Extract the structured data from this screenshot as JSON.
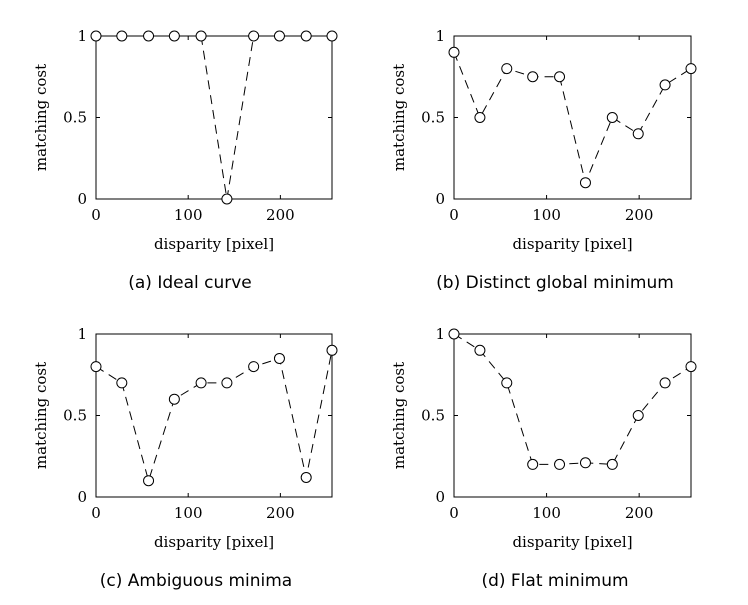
{
  "chart_data": [
    {
      "type": "line",
      "caption": "(a) Ideal curve",
      "xlabel": "disparity [pixel]",
      "ylabel": "matching cost",
      "xlim": [
        0,
        256
      ],
      "ylim": [
        0,
        1
      ],
      "xticks": [
        0,
        100,
        200
      ],
      "yticks": [
        0,
        0.5,
        1
      ],
      "grid": false,
      "line_style": "dashed",
      "marker": "open-circle",
      "x": [
        0,
        28,
        57,
        85,
        114,
        142,
        171,
        199,
        228,
        256
      ],
      "y": [
        1,
        1,
        1,
        1,
        1,
        0,
        1,
        1,
        1,
        1
      ]
    },
    {
      "type": "line",
      "caption": "(b) Distinct global minimum",
      "xlabel": "disparity [pixel]",
      "ylabel": "matching cost",
      "xlim": [
        0,
        256
      ],
      "ylim": [
        0,
        1
      ],
      "xticks": [
        0,
        100,
        200
      ],
      "yticks": [
        0,
        0.5,
        1
      ],
      "grid": false,
      "line_style": "dashed",
      "marker": "open-circle",
      "x": [
        0,
        28,
        57,
        85,
        114,
        142,
        171,
        199,
        228,
        256
      ],
      "y": [
        0.9,
        0.5,
        0.8,
        0.75,
        0.75,
        0.1,
        0.5,
        0.4,
        0.7,
        0.8
      ]
    },
    {
      "type": "line",
      "caption": "(c) Ambiguous minima",
      "xlabel": "disparity [pixel]",
      "ylabel": "matching cost",
      "xlim": [
        0,
        256
      ],
      "ylim": [
        0,
        1
      ],
      "xticks": [
        0,
        100,
        200
      ],
      "yticks": [
        0,
        0.5,
        1
      ],
      "grid": false,
      "line_style": "dashed",
      "marker": "open-circle",
      "x": [
        0,
        28,
        57,
        85,
        114,
        142,
        171,
        199,
        228,
        256
      ],
      "y": [
        0.8,
        0.7,
        0.1,
        0.6,
        0.7,
        0.7,
        0.8,
        0.85,
        0.12,
        0.9
      ]
    },
    {
      "type": "line",
      "caption": "(d) Flat minimum",
      "xlabel": "disparity [pixel]",
      "ylabel": "matching cost",
      "xlim": [
        0,
        256
      ],
      "ylim": [
        0,
        1
      ],
      "xticks": [
        0,
        100,
        200
      ],
      "yticks": [
        0,
        0.5,
        1
      ],
      "grid": false,
      "line_style": "dashed",
      "marker": "open-circle",
      "x": [
        0,
        28,
        57,
        85,
        114,
        142,
        171,
        199,
        228,
        256
      ],
      "y": [
        1,
        0.9,
        0.7,
        0.2,
        0.2,
        0.21,
        0.2,
        0.5,
        0.7,
        0.8
      ]
    }
  ]
}
